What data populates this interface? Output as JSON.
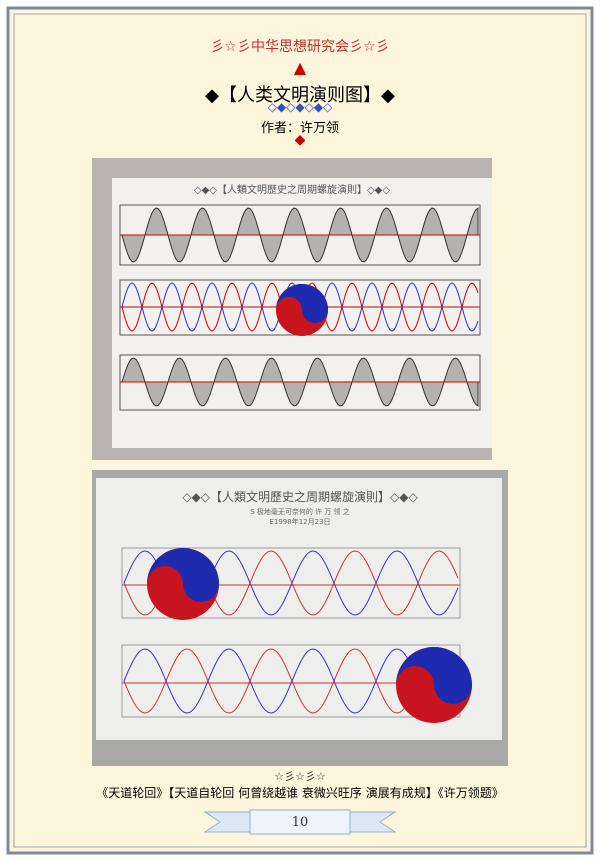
{
  "header": {
    "title": "彡☆彡中华思想研究会彡☆彡",
    "mark_top": "▲",
    "heading": "◆【人类文明演则图】◆",
    "ornament": "◇◆◇◆◇◆◇",
    "author": "作者：许万领",
    "mark_bottom": "◆"
  },
  "photos": [
    {
      "title": "◇◆◇【人類文明歷史之周期螺旋演則】◇◆◇"
    },
    {
      "title": "◇◆◇【人類文明歷史之周期螺旋演則】◇◆◇",
      "subtitle": "S 极地毫无可奈何的 许 万 领 之",
      "date": "E1998年12月23日"
    }
  ],
  "footer": {
    "ornament": "☆彡☆彡☆",
    "caption": "《天道轮回》【天道自轮回  何曾绕越谁  衰微兴旺序  演展有成规】《许万领题》",
    "page": "10"
  }
}
